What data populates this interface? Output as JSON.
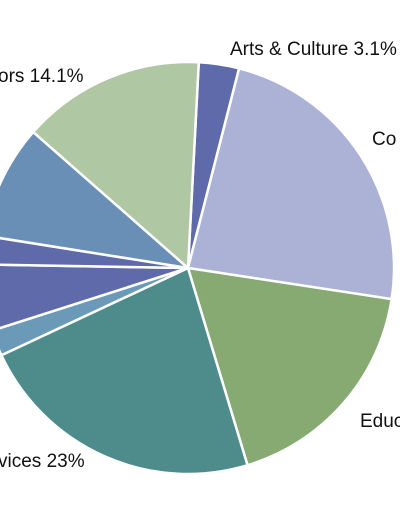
{
  "chart_data": {
    "type": "pie",
    "title": "",
    "slices": [
      {
        "label": "Arts & Culture 3.1%",
        "value": 3.1,
        "color": "#5f6aab"
      },
      {
        "label": "Co",
        "value": 23.0,
        "color": "#abb2d6"
      },
      {
        "label": "Educ",
        "value": 17.6,
        "color": "#86aa72"
      },
      {
        "label": "",
        "value": 22.3,
        "color": "#4e8c8c"
      },
      {
        "label": "",
        "value": 2.0,
        "color": "#6a9ab8"
      },
      {
        "label": "",
        "value": 5.1,
        "color": "#5f6aab"
      },
      {
        "label": "",
        "value": 2.2,
        "color": "#5f6aab"
      },
      {
        "label": "",
        "value": 8.8,
        "color": "#6a8fb6"
      },
      {
        "label": "",
        "value": 14.1,
        "color": "#b0c7a4"
      }
    ],
    "outside_labels": [
      {
        "label": "ors 14.1%",
        "anchor": "start"
      },
      {
        "label": "vices 23%",
        "anchor": "start"
      }
    ]
  }
}
